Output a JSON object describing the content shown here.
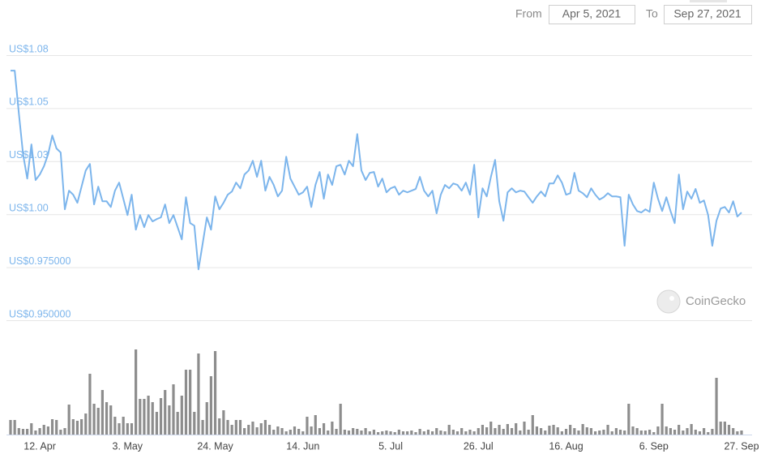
{
  "date_range": {
    "from_label": "From",
    "from": "Apr 5, 2021",
    "to_label": "To",
    "to": "Sep 27, 2021"
  },
  "watermark": "CoinGecko",
  "chart_data": {
    "type": "line",
    "categories": [
      "5. Apr",
      "6. Apr",
      "7. Apr",
      "8. Apr",
      "9. Apr",
      "10. Apr",
      "11. Apr",
      "12. Apr",
      "13. Apr",
      "14. Apr",
      "15. Apr",
      "16. Apr",
      "17. Apr",
      "18. Apr",
      "19. Apr",
      "20. Apr",
      "21. Apr",
      "22. Apr",
      "23. Apr",
      "24. Apr",
      "25. Apr",
      "26. Apr",
      "27. Apr",
      "28. Apr",
      "29. Apr",
      "30. Apr",
      "1. May",
      "2. May",
      "3. May",
      "4. May",
      "5. May",
      "6. May",
      "7. May",
      "8. May",
      "9. May",
      "10. May",
      "11. May",
      "12. May",
      "13. May",
      "14. May",
      "15. May",
      "16. May",
      "17. May",
      "18. May",
      "19. May",
      "20. May",
      "21. May",
      "22. May",
      "23. May",
      "24. May",
      "25. May",
      "26. May",
      "27. May",
      "28. May",
      "29. May",
      "30. May",
      "31. May",
      "1. Jun",
      "2. Jun",
      "3. Jun",
      "4. Jun",
      "5. Jun",
      "6. Jun",
      "7. Jun",
      "8. Jun",
      "9. Jun",
      "10. Jun",
      "11. Jun",
      "12. Jun",
      "13. Jun",
      "14. Jun",
      "15. Jun",
      "16. Jun",
      "17. Jun",
      "18. Jun",
      "19. Jun",
      "20. Jun",
      "21. Jun",
      "22. Jun",
      "23. Jun",
      "24. Jun",
      "25. Jun",
      "26. Jun",
      "27. Jun",
      "28. Jun",
      "29. Jun",
      "30. Jun",
      "1. Jul",
      "2. Jul",
      "3. Jul",
      "4. Jul",
      "5. Jul",
      "6. Jul",
      "7. Jul",
      "8. Jul",
      "9. Jul",
      "10. Jul",
      "11. Jul",
      "12. Jul",
      "13. Jul",
      "14. Jul",
      "15. Jul",
      "16. Jul",
      "17. Jul",
      "18. Jul",
      "19. Jul",
      "20. Jul",
      "21. Jul",
      "22. Jul",
      "23. Jul",
      "24. Jul",
      "25. Jul",
      "26. Jul",
      "27. Jul",
      "28. Jul",
      "29. Jul",
      "30. Jul",
      "31. Jul",
      "1. Aug",
      "2. Aug",
      "3. Aug",
      "4. Aug",
      "5. Aug",
      "6. Aug",
      "7. Aug",
      "8. Aug",
      "9. Aug",
      "10. Aug",
      "11. Aug",
      "12. Aug",
      "13. Aug",
      "14. Aug",
      "15. Aug",
      "16. Aug",
      "17. Aug",
      "18. Aug",
      "19. Aug",
      "20. Aug",
      "21. Aug",
      "22. Aug",
      "23. Aug",
      "24. Aug",
      "25. Aug",
      "26. Aug",
      "27. Aug",
      "28. Aug",
      "29. Aug",
      "30. Aug",
      "31. Aug",
      "1. Sep",
      "2. Sep",
      "3. Sep",
      "4. Sep",
      "5. Sep",
      "6. Sep",
      "7. Sep",
      "8. Sep",
      "9. Sep",
      "10. Sep",
      "11. Sep",
      "12. Sep",
      "13. Sep",
      "14. Sep",
      "15. Sep",
      "16. Sep",
      "17. Sep",
      "18. Sep",
      "19. Sep",
      "20. Sep",
      "21. Sep",
      "22. Sep",
      "23. Sep",
      "24. Sep",
      "25. Sep",
      "26. Sep",
      "27. Sep"
    ],
    "xticks": [
      "12. Apr",
      "3. May",
      "24. May",
      "14. Jun",
      "5. Jul",
      "26. Jul",
      "16. Aug",
      "6. Sep",
      "27. Sep"
    ],
    "series": [
      {
        "color": "#7cb5ec",
        "values": [
          1.0677,
          1.0677,
          1.0474,
          1.0283,
          1.0168,
          1.0329,
          1.0161,
          1.0187,
          1.0226,
          1.0283,
          1.0371,
          1.031,
          1.0291,
          1.0023,
          1.0111,
          1.0092,
          1.0054,
          1.013,
          1.0206,
          1.0237,
          1.0046,
          1.013,
          1.0061,
          1.0061,
          1.0034,
          1.0111,
          1.0149,
          1.0073,
          0.9996,
          1.0092,
          0.9927,
          0.9996,
          0.9939,
          0.9996,
          0.9966,
          0.9977,
          0.9985,
          1.0046,
          0.9958,
          0.9996,
          0.9939,
          0.9881,
          1.008,
          0.9958,
          0.9946,
          0.974,
          0.9862,
          0.9985,
          0.9927,
          1.0084,
          1.0023,
          1.0054,
          1.0092,
          1.0107,
          1.0149,
          1.0122,
          1.0187,
          1.0206,
          1.0252,
          1.0176,
          1.0252,
          1.0111,
          1.0176,
          1.0138,
          1.0084,
          1.0111,
          1.0271,
          1.0168,
          1.013,
          1.0092,
          1.0103,
          1.013,
          1.0034,
          1.0138,
          1.0199,
          1.0073,
          1.0187,
          1.0138,
          1.0226,
          1.0233,
          1.0187,
          1.0252,
          1.0226,
          1.0378,
          1.0206,
          1.0161,
          1.0195,
          1.0199,
          1.013,
          1.0168,
          1.0103,
          1.0122,
          1.013,
          1.0092,
          1.0111,
          1.0103,
          1.0111,
          1.0119,
          1.0176,
          1.0111,
          1.0084,
          1.0111,
          1.0004,
          1.0092,
          1.0138,
          1.0122,
          1.0145,
          1.0138,
          1.0111,
          1.0149,
          1.0092,
          1.0233,
          0.9985,
          1.0122,
          1.0084,
          1.0176,
          1.0256,
          1.0061,
          0.9969,
          1.0103,
          1.0122,
          1.0103,
          1.0111,
          1.0107,
          1.008,
          1.0054,
          1.0084,
          1.0107,
          1.0084,
          1.0145,
          1.0145,
          1.0183,
          1.0149,
          1.0092,
          1.0099,
          1.0195,
          1.0111,
          1.0099,
          1.008,
          1.0122,
          1.0092,
          1.0069,
          1.008,
          1.0099,
          1.0084,
          1.0084,
          1.008,
          0.9851,
          1.0092,
          1.0046,
          1.0015,
          1.0008,
          1.0023,
          1.0011,
          1.0149,
          1.0073,
          1.0015,
          1.008,
          1.0015,
          0.9958,
          1.0187,
          1.0023,
          1.0107,
          1.0073,
          1.0119,
          1.0054,
          1.0065,
          0.9996,
          0.9851,
          0.9969,
          1.0027,
          1.0034,
          1.0008,
          1.0061,
          0.9989,
          1.0008
        ]
      },
      {
        "type": "bar",
        "axis": "y2",
        "color": "#8d8d8d",
        "values": [
          18,
          18,
          8,
          7,
          7,
          14,
          5,
          8,
          12,
          10,
          19,
          18,
          6,
          8,
          37,
          19,
          17,
          19,
          26,
          75,
          38,
          33,
          55,
          40,
          36,
          22,
          14,
          22,
          14,
          14,
          105,
          44,
          44,
          48,
          40,
          28,
          45,
          55,
          36,
          62,
          28,
          48,
          80,
          80,
          28,
          100,
          18,
          40,
          72,
          103,
          20,
          30,
          18,
          12,
          18,
          18,
          8,
          12,
          16,
          9,
          14,
          18,
          12,
          6,
          10,
          8,
          4,
          6,
          10,
          7,
          4,
          22,
          10,
          24,
          8,
          14,
          5,
          16,
          7,
          38,
          6,
          5,
          8,
          7,
          5,
          8,
          4,
          6,
          3,
          4,
          5,
          4,
          3,
          6,
          4,
          4,
          5,
          3,
          7,
          4,
          6,
          4,
          8,
          5,
          4,
          12,
          6,
          4,
          8,
          4,
          6,
          4,
          8,
          12,
          9,
          16,
          8,
          12,
          7,
          13,
          8,
          14,
          5,
          16,
          6,
          24,
          10,
          8,
          5,
          11,
          12,
          9,
          4,
          7,
          12,
          8,
          5,
          13,
          9,
          8,
          4,
          5,
          6,
          12,
          4,
          8,
          6,
          5,
          38,
          10,
          8,
          5,
          5,
          6,
          3,
          10,
          38,
          10,
          8,
          6,
          12,
          5,
          8,
          13,
          6,
          4,
          8,
          3,
          7,
          70,
          16,
          16,
          12,
          8,
          4,
          5
        ]
      }
    ],
    "ylim": [
      0.95,
      1.075
    ],
    "yticks": [
      {
        "value": 1.075,
        "label": "US$1.08"
      },
      {
        "value": 1.05,
        "label": "US$1.05"
      },
      {
        "value": 1.025,
        "label": "US$1.03"
      },
      {
        "value": 1,
        "label": "US$1.00"
      },
      {
        "value": 0.975,
        "label": "US$0.975000"
      },
      {
        "value": 0.95,
        "label": "US$0.950000"
      }
    ],
    "y2lim": [
      0,
      120
    ],
    "grid": true
  }
}
